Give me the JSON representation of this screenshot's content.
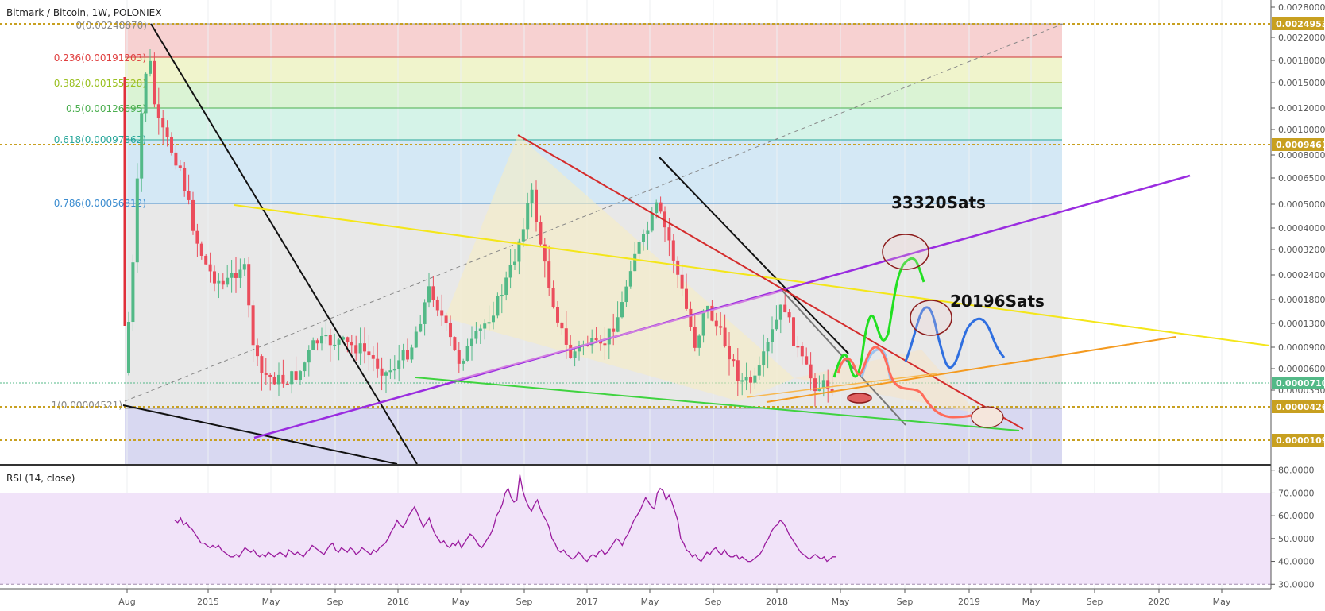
{
  "header": {
    "title": "Bitmark / Bitcoin, 1W, POLONIEX",
    "rsi_label": "RSI (14, close)"
  },
  "colors": {
    "up": "#53b987",
    "down": "#eb4d5c",
    "gold": "#c8a020",
    "rsi_line": "#9a1a9e",
    "rsi_band": "#f1e3f9"
  },
  "chart_data": [
    {
      "type": "candlestick",
      "title": "Bitmark / Bitcoin, 1W, POLONIEX",
      "y_scale": "log",
      "y_ticks": [
        "0.00280000",
        "0.00220000",
        "0.00180000",
        "0.00150000",
        "0.00120000",
        "0.00100000",
        "0.00080000",
        "0.00065000",
        "0.00050000",
        "0.00040000",
        "0.00032000",
        "0.00024000",
        "0.00018000",
        "0.00013000",
        "0.00009000",
        "0.00006000",
        "0.00003500"
      ],
      "x_ticks": [
        "Aug",
        "2015",
        "May",
        "Sep",
        "2016",
        "May",
        "Sep",
        "2017",
        "May",
        "Sep",
        "2018",
        "May",
        "Sep",
        "2019",
        "May",
        "Sep",
        "2020",
        "May"
      ],
      "price_badges": [
        {
          "label": "0.00249537",
          "value": 0.00249537,
          "color": "#c8a020"
        },
        {
          "label": "0.00094619",
          "value": 0.00094619,
          "color": "#c8a020"
        },
        {
          "label": "0.00007101",
          "value": 7.101e-05,
          "color": "#53b987"
        },
        {
          "label": "0.00004262",
          "value": 4.262e-05,
          "color": "#c8a020"
        },
        {
          "label": "0.00001090",
          "value": 1.09e-05,
          "color": "#c8a020"
        }
      ],
      "fib_levels": [
        {
          "label": "0(0.00248870)",
          "ratio": 0,
          "value": 0.0024887,
          "color": "#888888"
        },
        {
          "label": "0.236(0.00191203)",
          "ratio": 0.236,
          "value": 0.00191203,
          "color": "#e04040"
        },
        {
          "label": "0.382(0.00155528)",
          "ratio": 0.382,
          "value": 0.00155528,
          "color": "#9ac020"
        },
        {
          "label": "0.5(0.00126695)",
          "ratio": 0.5,
          "value": 0.00126695,
          "color": "#4caf50"
        },
        {
          "label": "0.618(0.00097862)",
          "ratio": 0.618,
          "value": 0.00097862,
          "color": "#26a69a"
        },
        {
          "label": "0.786(0.00056812)",
          "ratio": 0.786,
          "value": 0.00056812,
          "color": "#3c8dd0"
        },
        {
          "label": "1(0.00004521)",
          "ratio": 1,
          "value": 4.521e-05,
          "color": "#888888"
        }
      ],
      "annotations": [
        {
          "text": "33320Sats"
        },
        {
          "text": "20196Sats"
        }
      ],
      "legend": "none",
      "grid": true
    },
    {
      "type": "line",
      "title": "RSI (14, close)",
      "y_ticks": [
        "80.0000",
        "70.0000",
        "60.0000",
        "50.0000",
        "40.0000",
        "30.0000"
      ],
      "ylim": [
        28,
        82
      ],
      "bands": [
        30,
        70
      ],
      "values": [
        58,
        57,
        59,
        56,
        57,
        55,
        54,
        52,
        50,
        48,
        48,
        47,
        46,
        47,
        46,
        47,
        45,
        44,
        43,
        42,
        42,
        43,
        42,
        44,
        46,
        45,
        44,
        45,
        43,
        42,
        43,
        42,
        44,
        43,
        42,
        43,
        44,
        43,
        42,
        45,
        44,
        43,
        44,
        43,
        42,
        44,
        45,
        47,
        46,
        45,
        44,
        43,
        45,
        47,
        48,
        45,
        44,
        46,
        45,
        44,
        46,
        45,
        43,
        44,
        46,
        45,
        44,
        43,
        45,
        44,
        46,
        47,
        48,
        50,
        53,
        55,
        58,
        56,
        55,
        57,
        60,
        62,
        64,
        61,
        58,
        55,
        57,
        59,
        55,
        52,
        50,
        48,
        49,
        47,
        46,
        48,
        47,
        49,
        46,
        48,
        50,
        52,
        51,
        49,
        47,
        46,
        48,
        50,
        52,
        55,
        60,
        62,
        65,
        70,
        72,
        68,
        66,
        67,
        78,
        71,
        67,
        64,
        62,
        65,
        67,
        63,
        60,
        58,
        55,
        50,
        48,
        45,
        44,
        45,
        43,
        42,
        41,
        42,
        44,
        43,
        41,
        40,
        42,
        43,
        42,
        44,
        45,
        43,
        44,
        46,
        48,
        50,
        49,
        47,
        50,
        52,
        55,
        58,
        60,
        62,
        65,
        68,
        66,
        64,
        63,
        70,
        72,
        71,
        67,
        69,
        66,
        62,
        58,
        50,
        48,
        45,
        44,
        42,
        43,
        41,
        40,
        42,
        44,
        43,
        45,
        46,
        44,
        43,
        45,
        43,
        42,
        42,
        43,
        41,
        42,
        41,
        40,
        40,
        41,
        42,
        43,
        45,
        48,
        50,
        53,
        55,
        56,
        58,
        57,
        55,
        52,
        50,
        48,
        46,
        44,
        43,
        42,
        41,
        42,
        43,
        42,
        41,
        42,
        40,
        41,
        42,
        42
      ]
    }
  ]
}
